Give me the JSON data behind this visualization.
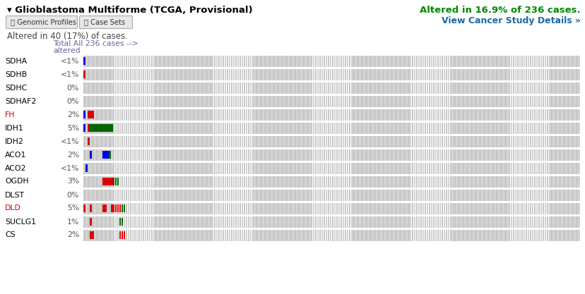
{
  "title": "▾ Glioblastoma Multiforme (TCGA, Provisional)",
  "altered_text": "Altered in 16.9% of 236 cases.",
  "view_details": "View Cancer Study Details »",
  "altered_cases": "Altered in 40 (17%) of cases.",
  "header_line1": "Total All 236 cases -->",
  "header_line2": "altered",
  "genomic_profiles_btn": "ⓘ Genomic Profiles",
  "case_sets_btn": "ⓘ Case Sets",
  "n_cases": 236,
  "genes": [
    "SDHA",
    "SDHB",
    "SDHC",
    "SDHAF2",
    "FH",
    "IDH1",
    "IDH2",
    "ACO1",
    "ACO2",
    "OGDH",
    "DLST",
    "DLD",
    "SUCLG1",
    "CS"
  ],
  "pct_labels": [
    "<1%",
    "<1%",
    "0%",
    "0%",
    "2%",
    "5%",
    "<1%",
    "2%",
    "<1%",
    "3%",
    "0%",
    "5%",
    "1%",
    "2%"
  ],
  "gene_is_red": [
    false,
    false,
    false,
    false,
    true,
    false,
    false,
    false,
    false,
    false,
    false,
    true,
    false,
    false
  ],
  "alterations": {
    "SDHA": [
      {
        "type": "amp",
        "cases": [
          0
        ]
      }
    ],
    "SDHB": [
      {
        "type": "mut",
        "cases": [
          0
        ]
      }
    ],
    "SDHC": [],
    "SDHAF2": [],
    "FH": [
      {
        "type": "amp",
        "cases": [
          0
        ]
      },
      {
        "type": "mut",
        "cases": [
          2,
          3,
          4
        ]
      }
    ],
    "IDH1": [
      {
        "type": "amp",
        "cases": [
          0
        ]
      },
      {
        "type": "mut",
        "cases": [
          2
        ]
      },
      {
        "type": "del",
        "cases": [
          3,
          4,
          5,
          6,
          7,
          8,
          9,
          10,
          11,
          12,
          13
        ]
      }
    ],
    "IDH2": [
      {
        "type": "mut",
        "cases": [
          2
        ]
      }
    ],
    "ACO1": [
      {
        "type": "amp",
        "cases": [
          3
        ]
      },
      {
        "type": "amp",
        "cases": [
          9,
          10,
          11
        ]
      },
      {
        "type": "del",
        "cases": [
          12
        ]
      }
    ],
    "ACO2": [
      {
        "type": "amp",
        "cases": [
          1
        ]
      }
    ],
    "OGDH": [
      {
        "type": "mut",
        "cases": [
          9,
          10,
          11,
          12,
          13
        ]
      },
      {
        "type": "del",
        "cases": [
          14,
          15,
          16
        ]
      }
    ],
    "DLST": [],
    "DLD": [
      {
        "type": "mut",
        "cases": [
          0
        ]
      },
      {
        "type": "mut",
        "cases": [
          3
        ]
      },
      {
        "type": "mut",
        "cases": [
          9,
          10
        ]
      },
      {
        "type": "mut",
        "cases": [
          13,
          14,
          15,
          16,
          17
        ]
      },
      {
        "type": "del",
        "cases": [
          18,
          19
        ]
      }
    ],
    "SUCLG1": [
      {
        "type": "mut",
        "cases": [
          3
        ]
      },
      {
        "type": "del",
        "cases": [
          17,
          18
        ]
      }
    ],
    "CS": [
      {
        "type": "mut",
        "cases": [
          3,
          4
        ]
      },
      {
        "type": "mut",
        "cases": [
          17,
          18,
          19
        ]
      }
    ]
  },
  "colors": {
    "amp": "#0000ee",
    "mut": "#dd0000",
    "del": "#006600"
  },
  "bg_stripe_dark": "#c8c8c8",
  "bg_stripe_light": "#d4d4d4",
  "title_color": "#000000",
  "altered_color": "#008800",
  "details_color": "#1a6aaa",
  "pct_color": "#555555",
  "gene_red": "#cc0000",
  "gene_black": "#000000",
  "header_color": "#6666aa",
  "cases_text_color": "#444444",
  "btn_face": "#e8e8e8",
  "btn_edge": "#aaaaaa",
  "btn_color": "#333333"
}
